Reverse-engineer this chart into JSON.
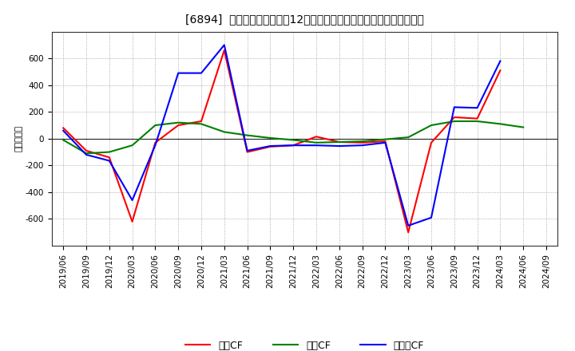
{
  "title": "[6894]  キャッシュフローの12か月移動合計の対前年同期増減額の推移",
  "ylabel": "（百万円）",
  "background_color": "#ffffff",
  "plot_bg_color": "#ffffff",
  "grid_color": "#999999",
  "ylim": [
    -800,
    800
  ],
  "yticks": [
    -600,
    -400,
    -200,
    0,
    200,
    400,
    600
  ],
  "x_labels": [
    "2019/06",
    "2019/09",
    "2019/12",
    "2020/03",
    "2020/06",
    "2020/09",
    "2020/12",
    "2021/03",
    "2021/06",
    "2021/09",
    "2021/12",
    "2022/03",
    "2022/06",
    "2022/09",
    "2022/12",
    "2023/03",
    "2023/06",
    "2023/09",
    "2023/12",
    "2024/03",
    "2024/06",
    "2024/09"
  ],
  "operating_cf": [
    80,
    -90,
    -140,
    -620,
    -30,
    100,
    130,
    660,
    -100,
    -60,
    -50,
    15,
    -25,
    -30,
    -20,
    -700,
    -30,
    160,
    150,
    510,
    null,
    null
  ],
  "investing_cf": [
    -10,
    -110,
    -100,
    -50,
    100,
    120,
    110,
    50,
    25,
    5,
    -10,
    -30,
    -25,
    -20,
    -5,
    10,
    100,
    130,
    130,
    110,
    85,
    null
  ],
  "free_cf": [
    60,
    -120,
    -165,
    -460,
    -50,
    490,
    490,
    700,
    -90,
    -55,
    -50,
    -50,
    -55,
    -50,
    -30,
    -650,
    -590,
    235,
    230,
    580,
    null,
    null
  ],
  "line_colors": {
    "operating": "#ff0000",
    "investing": "#008000",
    "free": "#0000ff"
  },
  "legend_labels": {
    "operating": "営業CF",
    "investing": "投資CF",
    "free": "フリーCF"
  },
  "title_fontsize": 11,
  "tick_fontsize": 7.5,
  "ylabel_fontsize": 8,
  "legend_fontsize": 9,
  "linewidth": 1.5
}
